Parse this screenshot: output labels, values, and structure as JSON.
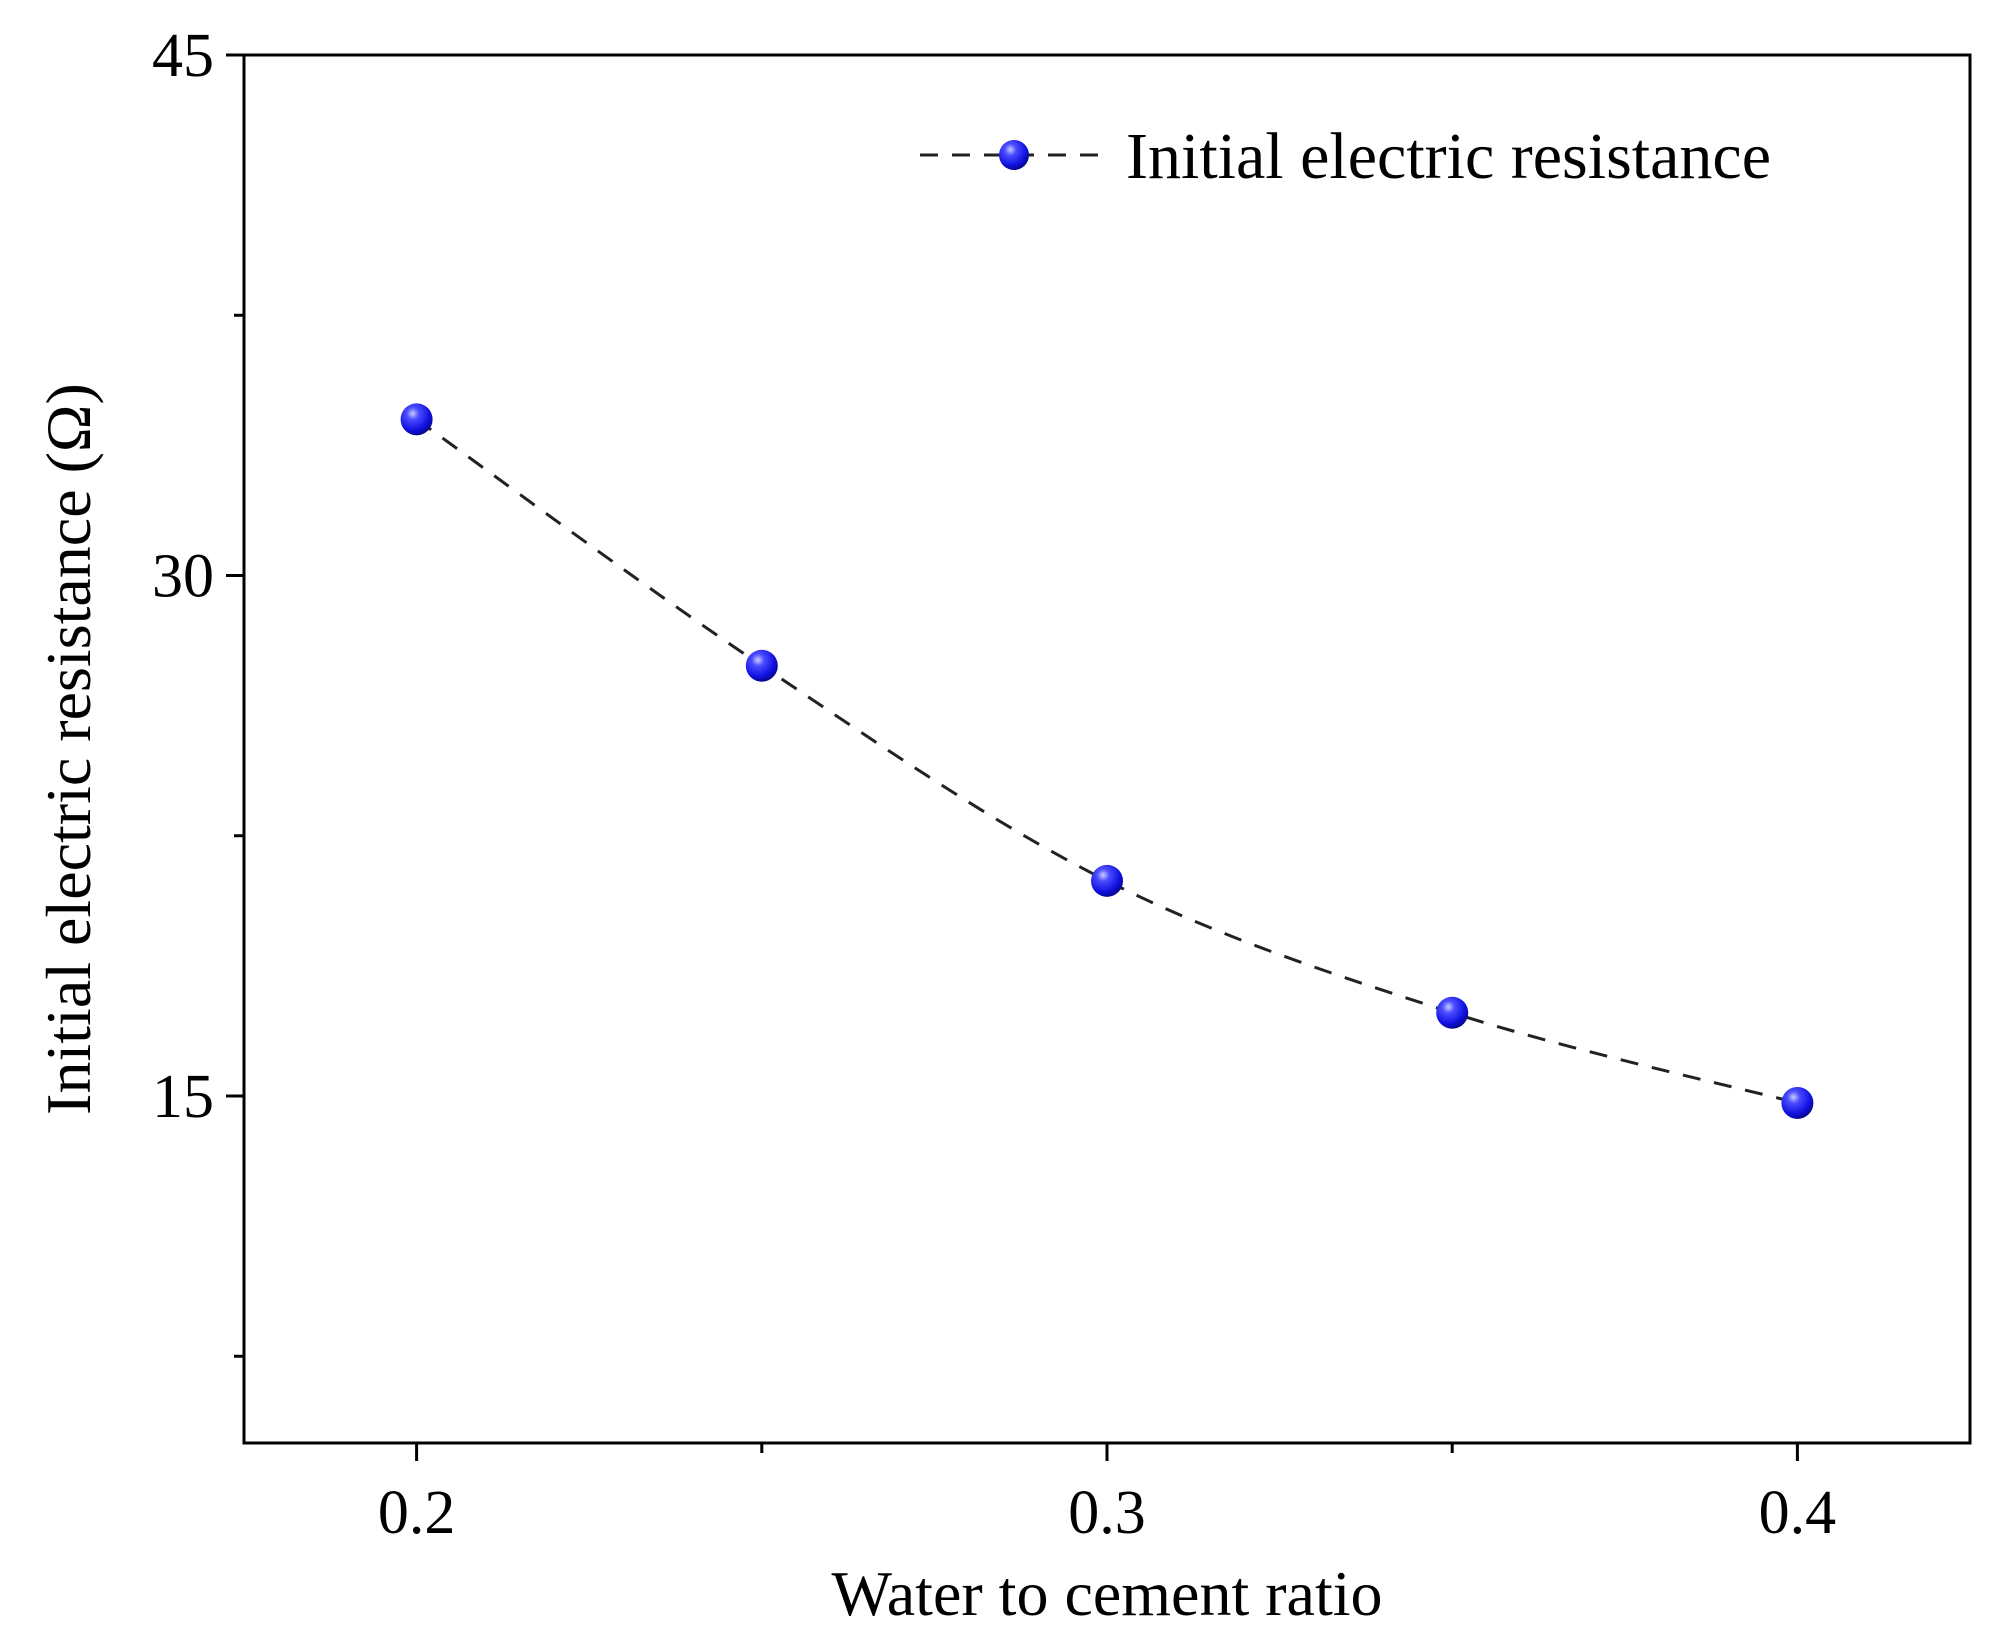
{
  "chart_data": {
    "type": "line",
    "title": "",
    "xlabel": "Water to cement ratio",
    "ylabel": "Initial electric resistance (Ω)",
    "xlim": [
      0.175,
      0.425
    ],
    "ylim": [
      5,
      45
    ],
    "x": [
      0.2,
      0.25,
      0.3,
      0.35,
      0.4
    ],
    "x_ticks": [
      0.2,
      0.3,
      0.4
    ],
    "x_tick_labels": [
      "0.2",
      "0.3",
      "0.4"
    ],
    "y_ticks": [
      15,
      30,
      45
    ],
    "y_tick_labels": [
      "15",
      "30",
      "45"
    ],
    "y_minor_ticks": [
      7.5,
      22.5,
      37.5
    ],
    "grid": false,
    "legend_position": "top-right",
    "series": [
      {
        "name": "Initial electric resistance",
        "values": [
          34.5,
          27.4,
          21.2,
          17.4,
          14.8
        ],
        "line_style": "dashed",
        "line_color": "#222222",
        "marker": "sphere",
        "marker_color": "#1010e8"
      }
    ]
  }
}
